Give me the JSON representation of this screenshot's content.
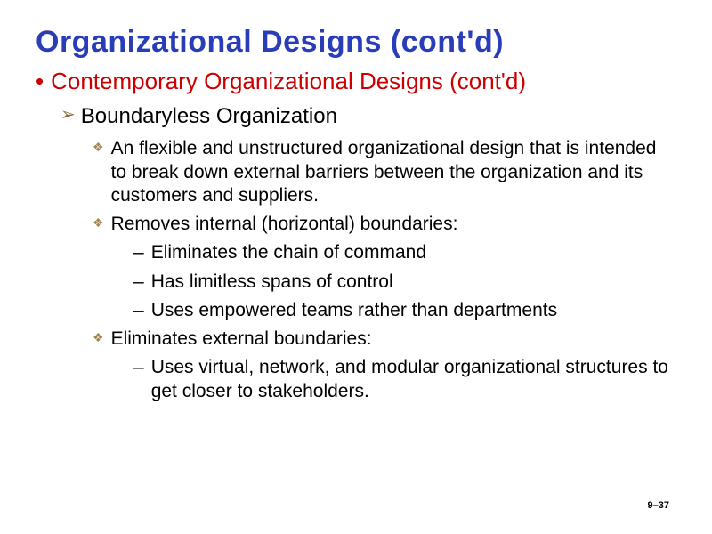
{
  "title": "Organizational Designs (cont'd)",
  "l1": {
    "bullet": "•",
    "text": "Contemporary Organizational Designs (cont'd)"
  },
  "l2": {
    "bullet": "➢",
    "text": "Boundaryless Organization"
  },
  "l3a": {
    "bullet": "❖",
    "text": "An flexible and unstructured organizational design that is intended to break down external barriers between the organization and its customers and suppliers."
  },
  "l3b": {
    "bullet": "❖",
    "text": "Removes internal (horizontal) boundaries:"
  },
  "l4a": {
    "bullet": "–",
    "text": "Eliminates the chain of command"
  },
  "l4b": {
    "bullet": "–",
    "text": "Has limitless spans of control"
  },
  "l4c": {
    "bullet": "–",
    "text": "Uses empowered teams rather than departments"
  },
  "l3c": {
    "bullet": "❖",
    "text": "Eliminates external boundaries:"
  },
  "l4d": {
    "bullet": "–",
    "text": "Uses virtual, network, and modular organizational structures to get closer to stakeholders."
  },
  "pageNumber": "9–37"
}
